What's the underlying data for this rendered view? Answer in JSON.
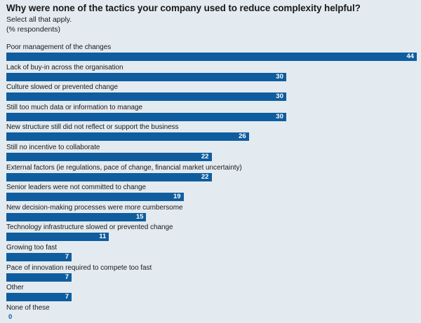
{
  "chart_data": {
    "type": "bar",
    "orientation": "horizontal",
    "title": "Why were none of the tactics your company used to reduce complexity helpful?",
    "subtitle_lines": [
      "Select all that apply.",
      "(% respondents)"
    ],
    "categories": [
      "Poor management of the changes",
      "Lack of buy-in across the organisation",
      "Culture slowed or prevented change",
      "Still too much data or information to manage",
      "New structure still did not reflect or support the business",
      "Still no incentive to collaborate",
      "External factors (ie regulations, pace of change, financial market uncertainty)",
      "Senior leaders were not committed to change",
      "New decision-making processes were more cumbersome",
      "Technology infrastructure slowed or prevented change",
      "Growing too fast",
      "Pace of innovation required to compete too fast",
      "Other",
      "None of these"
    ],
    "values": [
      44,
      30,
      30,
      30,
      26,
      22,
      22,
      19,
      15,
      11,
      7,
      7,
      7,
      0
    ],
    "xlim": [
      0,
      44
    ],
    "grid": false,
    "legend": "none",
    "bar_color": "#0f5d9e",
    "value_label_color": "#ffffff"
  }
}
